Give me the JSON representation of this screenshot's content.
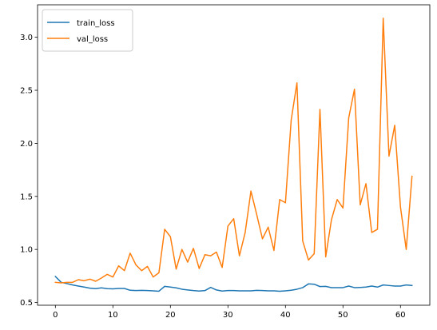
{
  "chart_data": {
    "type": "line",
    "title": "",
    "xlabel": "",
    "ylabel": "",
    "xlim": [
      -3.1,
      65.1
    ],
    "ylim": [
      0.474,
      3.306
    ],
    "xticks": [
      0,
      10,
      20,
      30,
      40,
      50,
      60
    ],
    "yticks": [
      0.5,
      1.0,
      1.5,
      2.0,
      2.5,
      3.0
    ],
    "ytick_labels": [
      "0.5",
      "1.0",
      "1.5",
      "2.0",
      "2.5",
      "3.0"
    ],
    "grid": false,
    "legend": "top-left",
    "x": [
      0,
      1,
      2,
      3,
      4,
      5,
      6,
      7,
      8,
      9,
      10,
      11,
      12,
      13,
      14,
      15,
      16,
      17,
      18,
      19,
      20,
      21,
      22,
      23,
      24,
      25,
      26,
      27,
      28,
      29,
      30,
      31,
      32,
      33,
      34,
      35,
      36,
      37,
      38,
      39,
      40,
      41,
      42,
      43,
      44,
      45,
      46,
      47,
      48,
      49,
      50,
      51,
      52,
      53,
      54,
      55,
      56,
      57,
      58,
      59,
      60,
      61,
      62
    ],
    "series": [
      {
        "name": "train_loss",
        "color": "#1f77b4",
        "values": [
          0.745,
          0.69,
          0.678,
          0.665,
          0.655,
          0.645,
          0.635,
          0.63,
          0.638,
          0.63,
          0.628,
          0.632,
          0.632,
          0.615,
          0.612,
          0.614,
          0.612,
          0.61,
          0.606,
          0.652,
          0.645,
          0.638,
          0.625,
          0.618,
          0.612,
          0.608,
          0.612,
          0.642,
          0.618,
          0.608,
          0.612,
          0.612,
          0.61,
          0.61,
          0.61,
          0.614,
          0.612,
          0.61,
          0.61,
          0.606,
          0.61,
          0.615,
          0.625,
          0.64,
          0.675,
          0.672,
          0.65,
          0.652,
          0.64,
          0.64,
          0.64,
          0.655,
          0.64,
          0.642,
          0.645,
          0.655,
          0.645,
          0.665,
          0.66,
          0.655,
          0.655,
          0.665,
          0.66
        ]
      },
      {
        "name": "val_loss",
        "color": "#ff7f0e",
        "values": [
          0.69,
          0.685,
          0.69,
          0.69,
          0.715,
          0.705,
          0.72,
          0.7,
          0.73,
          0.765,
          0.74,
          0.845,
          0.8,
          0.965,
          0.855,
          0.8,
          0.84,
          0.74,
          0.78,
          1.19,
          1.12,
          0.815,
          1.0,
          0.88,
          1.01,
          0.82,
          0.95,
          0.94,
          0.975,
          0.83,
          1.22,
          1.29,
          0.94,
          1.16,
          1.55,
          1.33,
          1.1,
          1.21,
          0.99,
          1.47,
          1.44,
          2.22,
          2.57,
          1.08,
          0.9,
          0.96,
          2.32,
          0.93,
          1.28,
          1.47,
          1.39,
          2.24,
          2.51,
          1.42,
          1.62,
          1.16,
          1.19,
          3.18,
          1.88,
          2.17,
          1.4,
          1.0,
          1.69
        ]
      }
    ]
  }
}
